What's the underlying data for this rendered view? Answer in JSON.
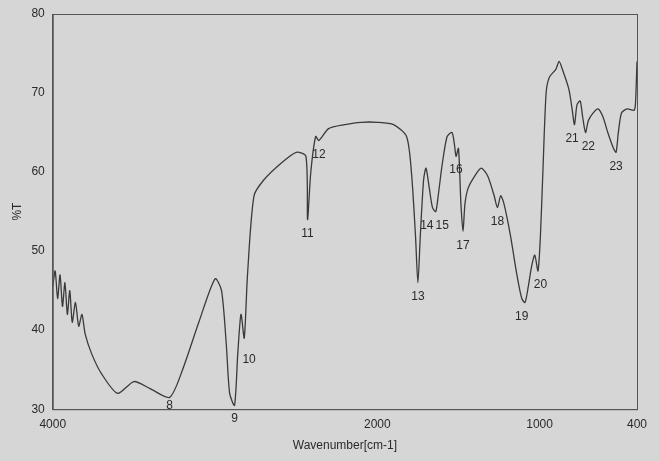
{
  "chart_data": {
    "type": "line",
    "x_label": "Wavenumber[cm-1]",
    "y_label": "%T",
    "x": [
      4000,
      3985,
      3970,
      3955,
      3940,
      3925,
      3910,
      3895,
      3880,
      3860,
      3840,
      3820,
      3800,
      3760,
      3700,
      3600,
      3500,
      3400,
      3280,
      3200,
      3100,
      3000,
      2960,
      2930,
      2910,
      2880,
      2860,
      2840,
      2820,
      2800,
      2760,
      2700,
      2600,
      2500,
      2440,
      2430,
      2410,
      2380,
      2360,
      2300,
      2200,
      2100,
      2000,
      1900,
      1820,
      1790,
      1765,
      1750,
      1735,
      1715,
      1700,
      1680,
      1660,
      1640,
      1625,
      1600,
      1570,
      1540,
      1525,
      1515,
      1500,
      1485,
      1472,
      1460,
      1440,
      1400,
      1360,
      1320,
      1280,
      1260,
      1240,
      1220,
      1180,
      1140,
      1110,
      1090,
      1070,
      1050,
      1030,
      1010,
      995,
      980,
      960,
      940,
      900,
      880,
      860,
      820,
      800,
      785,
      770,
      750,
      735,
      717,
      700,
      670,
      640,
      610,
      580,
      545,
      529,
      515,
      495,
      460,
      420,
      410,
      400
    ],
    "values": [
      45.5,
      47.5,
      44,
      47,
      43,
      46,
      42,
      45,
      41,
      43.5,
      40.5,
      42,
      39.5,
      37,
      34.5,
      32,
      33.5,
      32.6,
      31.5,
      35,
      41,
      46.5,
      45,
      38,
      32,
      30.5,
      37,
      42,
      39,
      47,
      57,
      59,
      61,
      62.5,
      62,
      54,
      60,
      64.5,
      64,
      65.5,
      66,
      66.3,
      66.3,
      66,
      64.5,
      60,
      52,
      46,
      52,
      59,
      60.5,
      58,
      55.5,
      55,
      57,
      61,
      64.5,
      65,
      63.5,
      62,
      63,
      56,
      52.5,
      56,
      58,
      59.5,
      60.5,
      59.5,
      57,
      55.5,
      57,
      56,
      52,
      47,
      44,
      43.5,
      45.5,
      48,
      49.5,
      47.5,
      52,
      60,
      70,
      72,
      73,
      74,
      73,
      70.5,
      68,
      66,
      68.5,
      69,
      67,
      65,
      66.5,
      67.5,
      68,
      67,
      65,
      63,
      62.5,
      65,
      67.5,
      68,
      67.8,
      68.5,
      74
    ],
    "color": "#3a3a3a",
    "marker": "none",
    "grid": false,
    "xlim": [
      4000,
      400
    ],
    "xticks": [
      4000,
      2000,
      1000,
      400
    ],
    "ylim": [
      30,
      80
    ],
    "yticks": [
      30,
      40,
      50,
      60,
      70,
      80
    ],
    "annotations": [
      {
        "text": "8",
        "x": 3280,
        "y": 31.2
      },
      {
        "text": "9",
        "x": 2880,
        "y": 29.6
      },
      {
        "text": "10",
        "x": 2790,
        "y": 37
      },
      {
        "text": "11",
        "x": 2430,
        "y": 53
      },
      {
        "text": "12",
        "x": 2360,
        "y": 63
      },
      {
        "text": "13",
        "x": 1750,
        "y": 45
      },
      {
        "text": "14",
        "x": 1695,
        "y": 54
      },
      {
        "text": "15",
        "x": 1600,
        "y": 54
      },
      {
        "text": "16",
        "x": 1515,
        "y": 61
      },
      {
        "text": "17",
        "x": 1472,
        "y": 51.5
      },
      {
        "text": "18",
        "x": 1260,
        "y": 54.5
      },
      {
        "text": "19",
        "x": 1110,
        "y": 42.5
      },
      {
        "text": "20",
        "x": 995,
        "y": 46.5
      },
      {
        "text": "21",
        "x": 800,
        "y": 65
      },
      {
        "text": "22",
        "x": 700,
        "y": 64
      },
      {
        "text": "23",
        "x": 529,
        "y": 61.5
      }
    ]
  }
}
